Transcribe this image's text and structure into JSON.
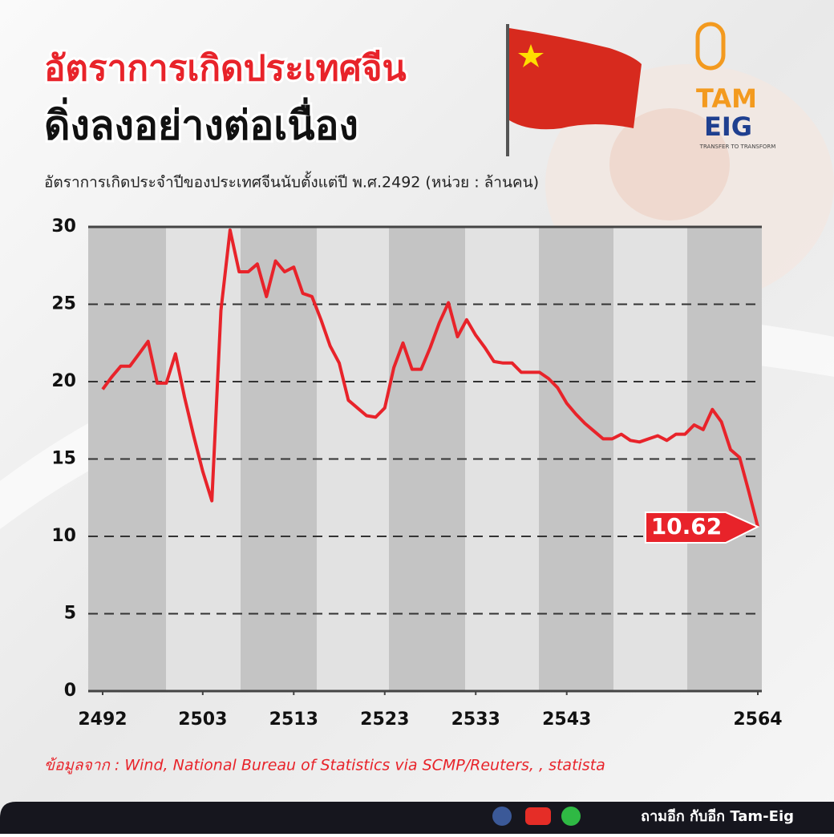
{
  "chart_data": {
    "type": "line",
    "title": [
      "อัตราการเกิดประเทศจีน",
      "ดิ่งลงอย่างต่อเนื่อง"
    ],
    "subtitle": "อัตราการเกิดประจำปีของประเทศจีนนับตั้งแต่ปี พ.ศ.2492 (หน่วย : ล้านคน)",
    "source": "ข้อมูลจาก : Wind, National Bureau of Statistics via SCMP/Reuters, , statista",
    "x": [
      2492,
      2493,
      2494,
      2495,
      2496,
      2497,
      2498,
      2499,
      2500,
      2501,
      2502,
      2503,
      2504,
      2505,
      2506,
      2507,
      2508,
      2509,
      2510,
      2511,
      2512,
      2513,
      2514,
      2515,
      2516,
      2517,
      2518,
      2519,
      2520,
      2521,
      2522,
      2523,
      2524,
      2525,
      2526,
      2527,
      2528,
      2529,
      2530,
      2531,
      2532,
      2533,
      2534,
      2535,
      2536,
      2537,
      2538,
      2539,
      2540,
      2541,
      2542,
      2543,
      2544,
      2545,
      2546,
      2547,
      2548,
      2549,
      2550,
      2551,
      2552,
      2553,
      2554,
      2555,
      2556,
      2557,
      2558,
      2559,
      2560,
      2561,
      2562,
      2563,
      2564
    ],
    "values": [
      19.5,
      20.3,
      21.0,
      21.0,
      21.8,
      22.6,
      19.9,
      19.9,
      21.8,
      19.0,
      16.5,
      14.2,
      12.3,
      24.6,
      29.8,
      27.1,
      27.1,
      27.6,
      25.5,
      27.8,
      27.1,
      27.4,
      25.7,
      25.5,
      24.0,
      22.3,
      21.2,
      18.8,
      18.3,
      17.8,
      17.7,
      18.3,
      20.9,
      22.5,
      20.8,
      20.8,
      22.2,
      23.8,
      25.1,
      22.9,
      24.0,
      23.0,
      22.2,
      21.3,
      21.2,
      21.2,
      20.6,
      20.6,
      20.6,
      20.2,
      19.6,
      18.6,
      17.9,
      17.3,
      16.8,
      16.3,
      16.3,
      16.6,
      16.2,
      16.1,
      16.3,
      16.5,
      16.2,
      16.6,
      16.6,
      17.2,
      16.9,
      18.2,
      17.4,
      15.6,
      15.1,
      12.9,
      10.62
    ],
    "color": "#e8232a",
    "xlim": [
      2492,
      2564
    ],
    "ylim": [
      0,
      30
    ],
    "xticks": [
      2492,
      2503,
      2513,
      2523,
      2533,
      2543,
      2564
    ],
    "yticks": [
      0,
      5,
      10,
      15,
      20,
      25,
      30
    ],
    "grid": true
  },
  "logo": {
    "name_top": "TAM",
    "name_bottom": "EIG",
    "tagline": "TRANSFER TO TRANSFORM"
  },
  "footer": {
    "text": "ถามอีก กับอีก Tam-Eig"
  }
}
